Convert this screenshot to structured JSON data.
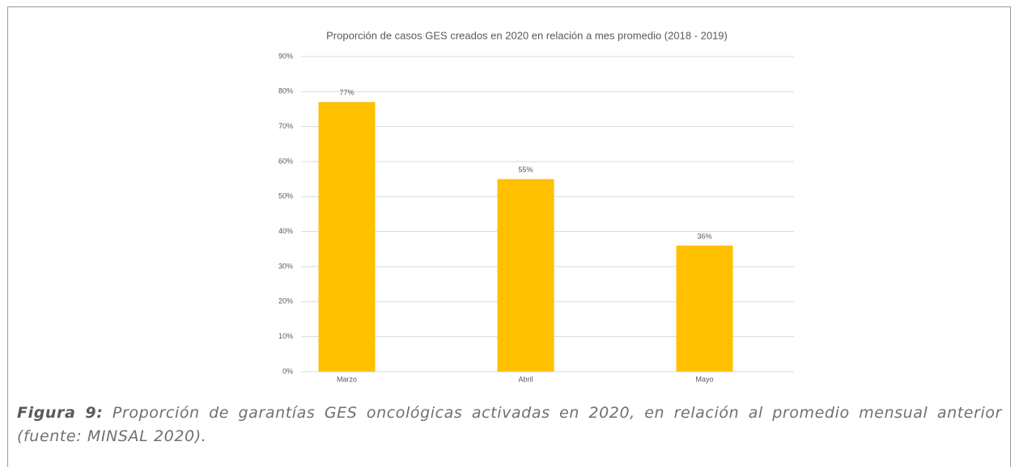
{
  "chart_data": {
    "type": "bar",
    "title": "Proporción de casos GES creados en 2020 en relación a mes promedio (2018 - 2019)",
    "categories": [
      "Marzo",
      "Abril",
      "Mayo"
    ],
    "values": [
      77,
      55,
      36
    ],
    "value_labels": [
      "77%",
      "55%",
      "36%"
    ],
    "color": "#ffc000",
    "ylim": [
      0,
      90
    ],
    "yticks": [
      {
        "value": 0,
        "label": "0%"
      },
      {
        "value": 10,
        "label": "10%"
      },
      {
        "value": 20,
        "label": "20%"
      },
      {
        "value": 30,
        "label": "30%"
      },
      {
        "value": 40,
        "label": "40%"
      },
      {
        "value": 50,
        "label": "50%"
      },
      {
        "value": 60,
        "label": "60%"
      },
      {
        "value": 70,
        "label": "70%"
      },
      {
        "value": 80,
        "label": "80%"
      },
      {
        "value": 90,
        "label": "90%"
      }
    ],
    "grid": true
  },
  "caption": {
    "label": "Figura 9:",
    "text": "Proporción de garantías GES oncológicas activadas en 2020, en relación al promedio mensual anterior (fuente: MINSAL 2020)."
  }
}
